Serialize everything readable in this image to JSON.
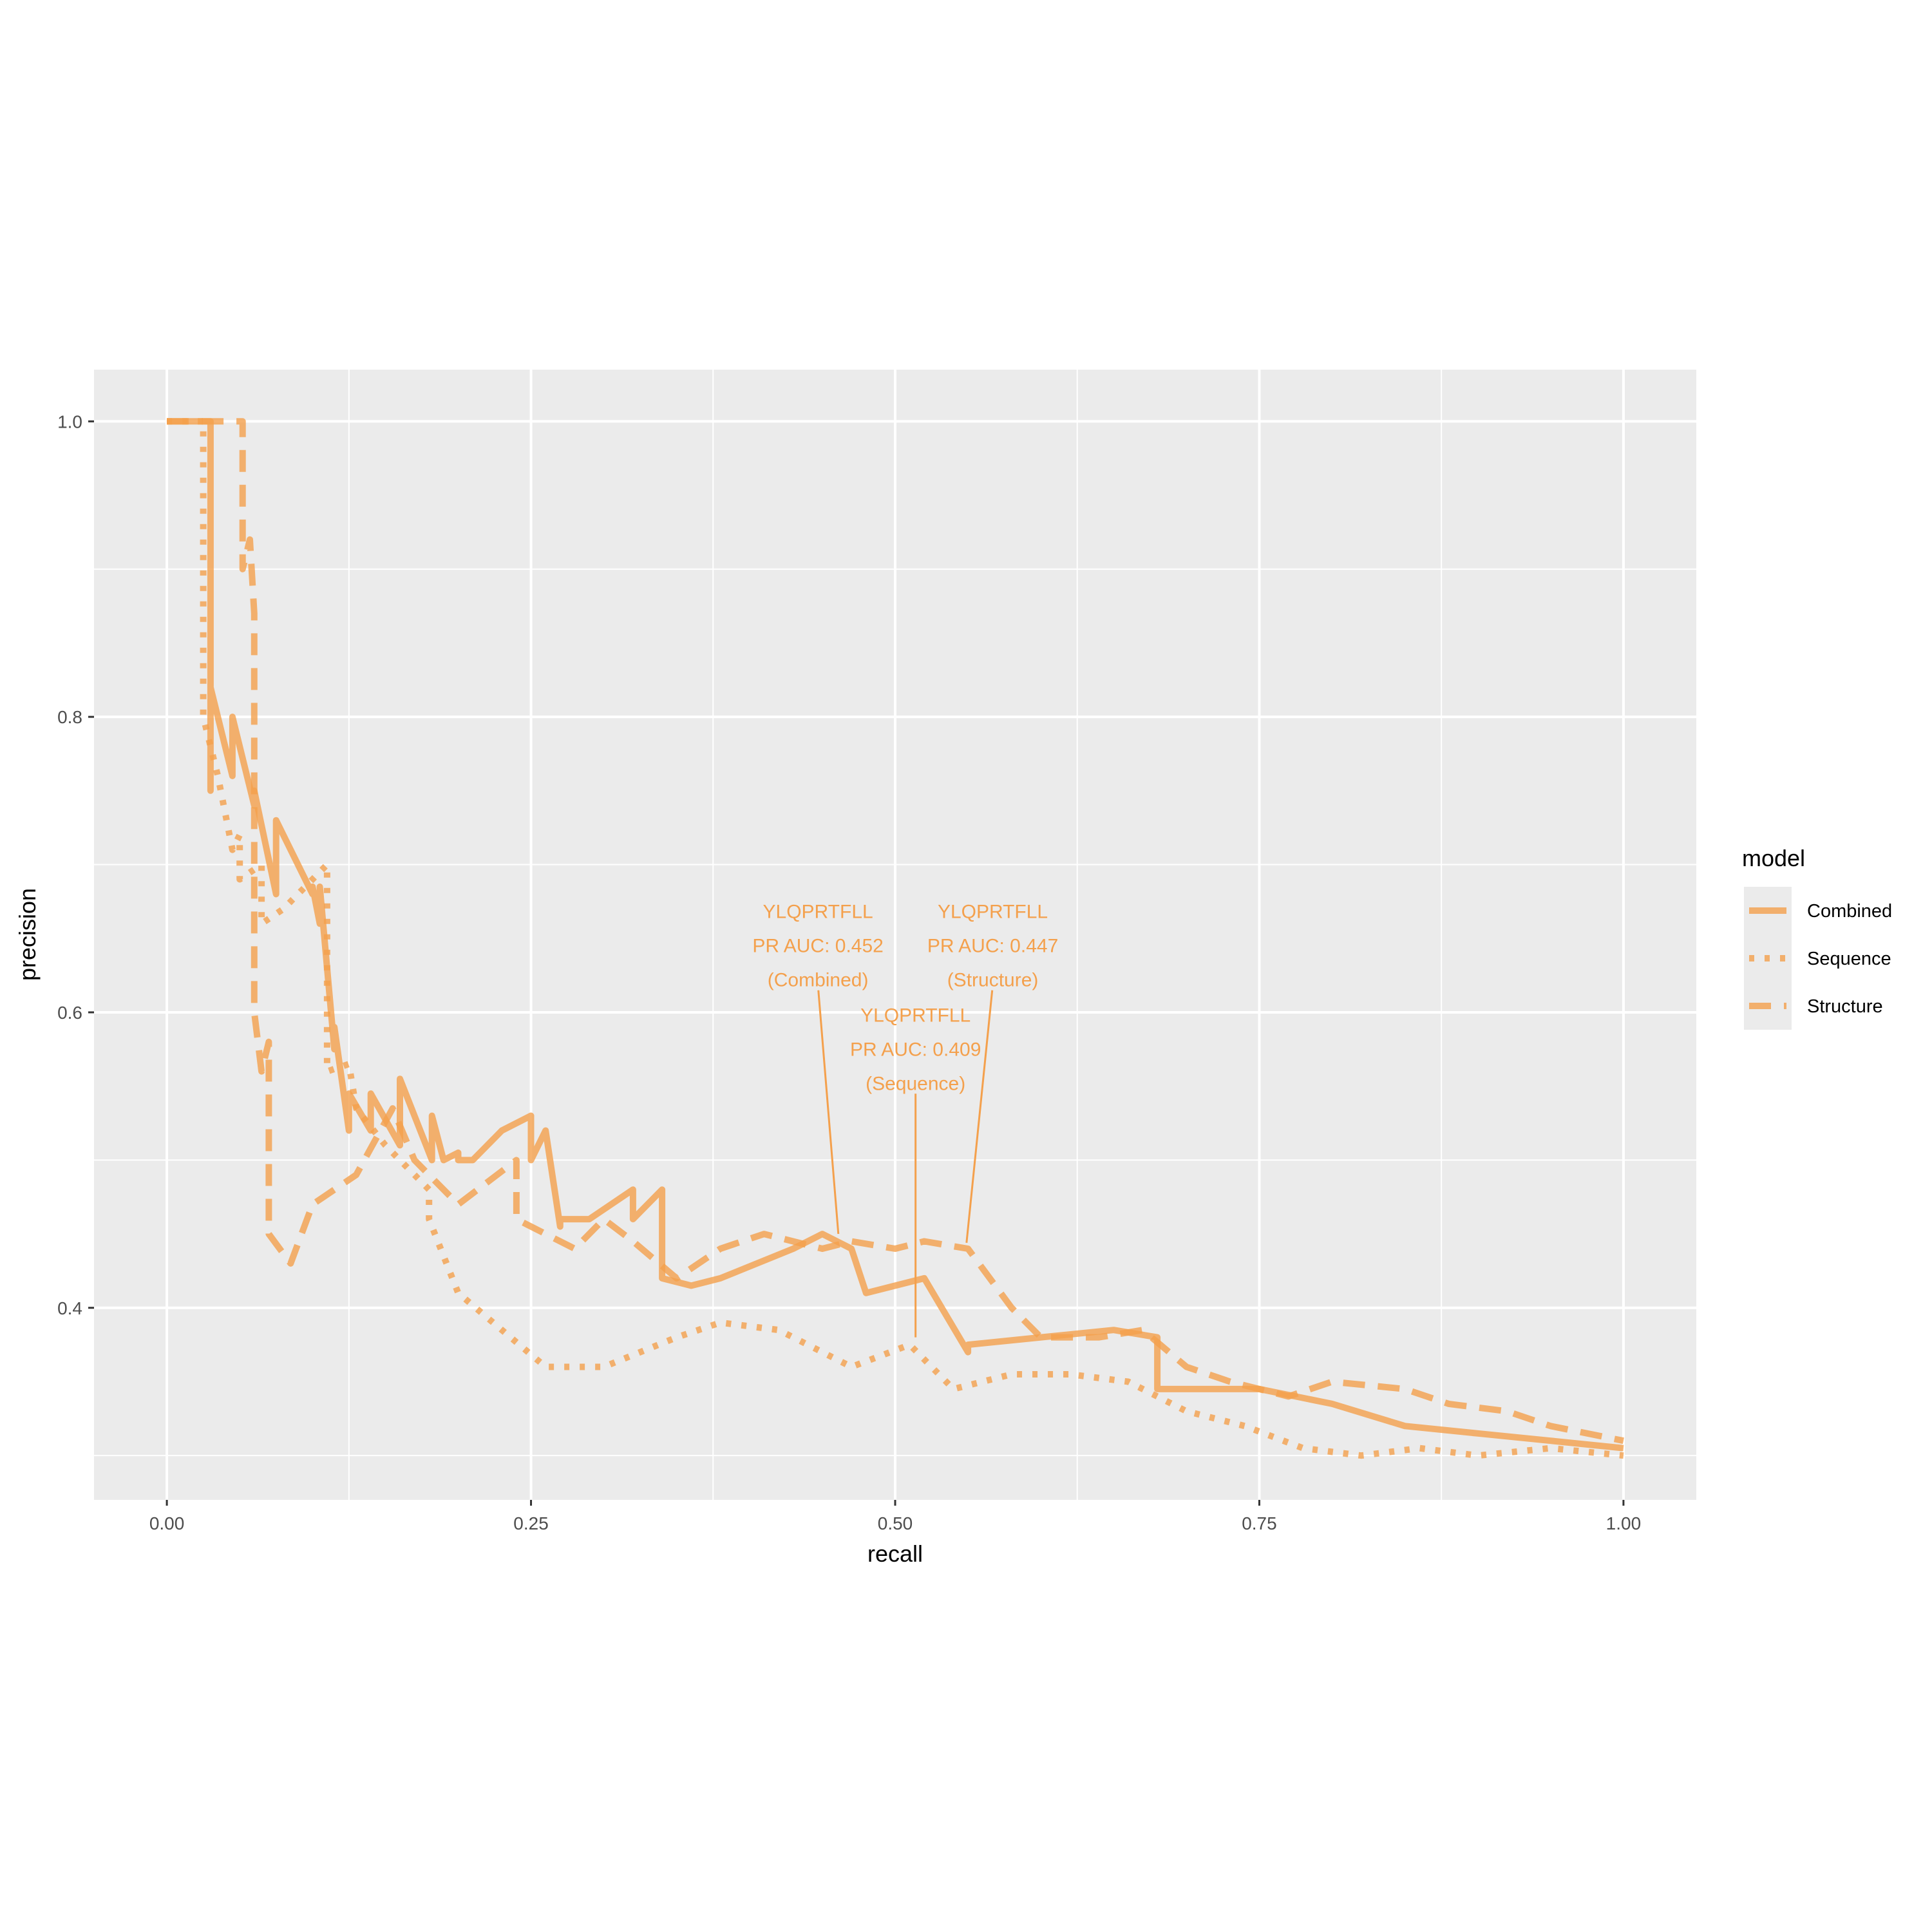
{
  "chart_data": {
    "type": "line",
    "title": "",
    "xlabel": "recall",
    "ylabel": "precision",
    "xlim": [
      -0.05,
      1.05
    ],
    "ylim": [
      0.27,
      1.035
    ],
    "x_ticks": [
      0.0,
      0.25,
      0.5,
      0.75,
      1.0
    ],
    "x_tick_labels": [
      "0.00",
      "0.25",
      "0.50",
      "0.75",
      "1.00"
    ],
    "y_ticks": [
      0.4,
      0.6,
      0.8,
      1.0
    ],
    "y_tick_labels": [
      "0.4",
      "0.6",
      "0.8",
      "1.0"
    ],
    "grid": true,
    "legend": {
      "title": "model",
      "position": "right"
    },
    "line_color": "#f4a04c",
    "series": [
      {
        "name": "Combined",
        "style": "solid",
        "x": [
          0.0,
          0.03,
          0.03,
          0.03,
          0.045,
          0.045,
          0.06,
          0.06,
          0.075,
          0.075,
          0.1,
          0.1,
          0.105,
          0.105,
          0.115,
          0.115,
          0.125,
          0.125,
          0.14,
          0.14,
          0.16,
          0.16,
          0.182,
          0.182,
          0.19,
          0.2,
          0.2,
          0.21,
          0.23,
          0.25,
          0.25,
          0.26,
          0.27,
          0.27,
          0.29,
          0.32,
          0.32,
          0.34,
          0.34,
          0.36,
          0.38,
          0.43,
          0.45,
          0.47,
          0.48,
          0.52,
          0.55,
          0.55,
          0.6,
          0.65,
          0.68,
          0.68,
          0.75,
          0.8,
          0.85,
          0.9,
          0.95,
          1.0
        ],
        "y": [
          1.0,
          1.0,
          0.75,
          0.82,
          0.76,
          0.8,
          0.74,
          0.75,
          0.68,
          0.73,
          0.68,
          0.685,
          0.66,
          0.685,
          0.575,
          0.59,
          0.52,
          0.545,
          0.52,
          0.545,
          0.51,
          0.555,
          0.5,
          0.53,
          0.5,
          0.505,
          0.5,
          0.5,
          0.52,
          0.53,
          0.5,
          0.52,
          0.455,
          0.46,
          0.46,
          0.48,
          0.46,
          0.48,
          0.42,
          0.415,
          0.42,
          0.44,
          0.45,
          0.44,
          0.41,
          0.42,
          0.37,
          0.375,
          0.38,
          0.385,
          0.38,
          0.345,
          0.345,
          0.335,
          0.32,
          0.315,
          0.31,
          0.305
        ]
      },
      {
        "name": "Sequence",
        "style": "dotted",
        "x": [
          0.0,
          0.025,
          0.025,
          0.035,
          0.045,
          0.05,
          0.05,
          0.065,
          0.065,
          0.08,
          0.08,
          0.11,
          0.11,
          0.125,
          0.13,
          0.15,
          0.16,
          0.18,
          0.18,
          0.2,
          0.23,
          0.26,
          0.3,
          0.35,
          0.38,
          0.42,
          0.47,
          0.51,
          0.54,
          0.58,
          0.62,
          0.66,
          0.7,
          0.74,
          0.78,
          0.82,
          0.86,
          0.9,
          0.95,
          1.0
        ],
        "y": [
          1.0,
          1.0,
          0.8,
          0.76,
          0.71,
          0.72,
          0.69,
          0.7,
          0.66,
          0.67,
          0.67,
          0.7,
          0.56,
          0.565,
          0.535,
          0.51,
          0.5,
          0.48,
          0.46,
          0.41,
          0.385,
          0.36,
          0.36,
          0.38,
          0.39,
          0.385,
          0.36,
          0.375,
          0.345,
          0.355,
          0.355,
          0.35,
          0.33,
          0.32,
          0.305,
          0.3,
          0.305,
          0.3,
          0.305,
          0.3
        ]
      },
      {
        "name": "Structure",
        "style": "dashed",
        "x": [
          0.0,
          0.052,
          0.052,
          0.057,
          0.06,
          0.06,
          0.065,
          0.07,
          0.07,
          0.085,
          0.1,
          0.13,
          0.155,
          0.17,
          0.2,
          0.24,
          0.24,
          0.28,
          0.3,
          0.32,
          0.35,
          0.38,
          0.41,
          0.45,
          0.47,
          0.5,
          0.52,
          0.55,
          0.58,
          0.6,
          0.64,
          0.67,
          0.7,
          0.73,
          0.77,
          0.8,
          0.85,
          0.88,
          0.92,
          0.95,
          1.0
        ],
        "y": [
          1.0,
          1.0,
          0.9,
          0.92,
          0.87,
          0.6,
          0.56,
          0.58,
          0.45,
          0.43,
          0.47,
          0.49,
          0.535,
          0.5,
          0.47,
          0.5,
          0.46,
          0.44,
          0.46,
          0.445,
          0.42,
          0.44,
          0.45,
          0.44,
          0.445,
          0.44,
          0.445,
          0.44,
          0.4,
          0.38,
          0.38,
          0.385,
          0.36,
          0.35,
          0.34,
          0.35,
          0.345,
          0.335,
          0.33,
          0.32,
          0.31
        ]
      }
    ],
    "annotations": [
      {
        "lines": [
          "YLQPRTFLL",
          "PR AUC: 0.452",
          "(Combined)"
        ],
        "x": 0.447,
        "y": 0.645,
        "point_x": 0.461,
        "point_y": 0.45
      },
      {
        "lines": [
          "YLQPRTFLL",
          "PR AUC: 0.447",
          "(Structure)"
        ],
        "x": 0.567,
        "y": 0.645,
        "point_x": 0.549,
        "point_y": 0.444
      },
      {
        "lines": [
          "YLQPRTFLL",
          "PR AUC: 0.409",
          "(Sequence)"
        ],
        "x": 0.514,
        "y": 0.575,
        "point_x": 0.514,
        "point_y": 0.38
      }
    ]
  }
}
